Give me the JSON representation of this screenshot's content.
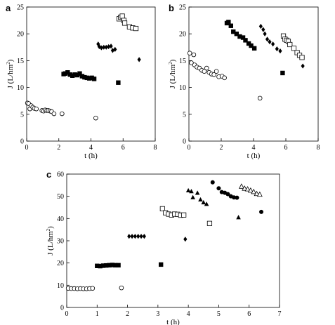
{
  "chart_data": [
    {
      "panel": "a",
      "type": "scatter",
      "xlabel": "t (h)",
      "ylabel": "J (L/hm²)",
      "xlim": [
        0,
        8
      ],
      "ylim": [
        0,
        25
      ],
      "xticks": [
        0,
        2,
        4,
        6,
        8
      ],
      "yticks": [
        0,
        5,
        10,
        15,
        20,
        25
      ],
      "series": [
        {
          "marker": "open-circle",
          "points": [
            [
              0.05,
              7.1
            ],
            [
              0.12,
              7.0
            ],
            [
              0.2,
              6.0
            ],
            [
              0.28,
              6.6
            ],
            [
              0.38,
              6.3
            ],
            [
              0.48,
              6.1
            ],
            [
              0.6,
              6.0
            ],
            [
              0.95,
              5.7
            ],
            [
              1.05,
              5.6
            ],
            [
              1.15,
              5.8
            ],
            [
              1.25,
              5.7
            ],
            [
              1.35,
              5.7
            ],
            [
              1.45,
              5.6
            ],
            [
              1.55,
              5.5
            ],
            [
              1.7,
              5.1
            ],
            [
              2.2,
              5.1
            ],
            [
              4.3,
              4.3
            ]
          ]
        },
        {
          "marker": "filled-square",
          "points": [
            [
              2.3,
              12.5
            ],
            [
              2.4,
              12.6
            ],
            [
              2.55,
              12.8
            ],
            [
              2.7,
              12.4
            ],
            [
              2.85,
              12.2
            ],
            [
              3.0,
              12.4
            ],
            [
              3.15,
              12.3
            ],
            [
              3.3,
              12.6
            ],
            [
              3.45,
              12.1
            ],
            [
              3.6,
              11.9
            ],
            [
              3.75,
              11.8
            ],
            [
              3.9,
              11.7
            ],
            [
              4.05,
              11.8
            ],
            [
              4.2,
              11.6
            ],
            [
              5.7,
              10.9
            ]
          ]
        },
        {
          "marker": "filled-diamond",
          "points": [
            [
              4.45,
              18.1
            ],
            [
              4.52,
              17.6
            ],
            [
              4.65,
              17.4
            ],
            [
              4.8,
              17.5
            ],
            [
              4.95,
              17.5
            ],
            [
              5.1,
              17.6
            ],
            [
              5.25,
              17.7
            ],
            [
              5.35,
              16.9
            ],
            [
              5.5,
              17.1
            ],
            [
              7.0,
              15.2
            ]
          ]
        },
        {
          "marker": "open-square",
          "points": [
            [
              5.75,
              22.8
            ],
            [
              5.85,
              23.1
            ],
            [
              5.95,
              23.3
            ],
            [
              6.05,
              22.5
            ],
            [
              6.1,
              22.0
            ],
            [
              6.4,
              21.3
            ],
            [
              6.6,
              21.1
            ],
            [
              6.8,
              21.0
            ]
          ]
        }
      ]
    },
    {
      "panel": "b",
      "type": "scatter",
      "xlabel": "t (h)",
      "ylabel": "J (L/hm²)",
      "xlim": [
        0,
        8
      ],
      "ylim": [
        0,
        25
      ],
      "xticks": [
        0,
        2,
        4,
        6,
        8
      ],
      "yticks": [
        0,
        5,
        10,
        15,
        20,
        25
      ],
      "series": [
        {
          "marker": "open-circle",
          "points": [
            [
              0.05,
              16.4
            ],
            [
              0.15,
              14.6
            ],
            [
              0.3,
              16.1
            ],
            [
              0.35,
              14.2
            ],
            [
              0.5,
              13.8
            ],
            [
              0.65,
              13.6
            ],
            [
              0.8,
              13.2
            ],
            [
              0.95,
              13.0
            ],
            [
              1.1,
              13.6
            ],
            [
              1.25,
              12.8
            ],
            [
              1.4,
              12.5
            ],
            [
              1.55,
              12.4
            ],
            [
              1.7,
              13.0
            ],
            [
              1.85,
              12.0
            ],
            [
              2.05,
              12.1
            ],
            [
              2.2,
              11.8
            ],
            [
              4.4,
              8.0
            ]
          ]
        },
        {
          "marker": "filled-square",
          "points": [
            [
              2.35,
              22.0
            ],
            [
              2.45,
              22.2
            ],
            [
              2.6,
              21.5
            ],
            [
              2.75,
              20.4
            ],
            [
              2.95,
              20.0
            ],
            [
              3.15,
              19.5
            ],
            [
              3.35,
              19.3
            ],
            [
              3.5,
              18.8
            ],
            [
              3.7,
              18.2
            ],
            [
              3.85,
              17.8
            ],
            [
              4.05,
              17.3
            ],
            [
              5.8,
              12.7
            ]
          ]
        },
        {
          "marker": "filled-diamond",
          "points": [
            [
              4.45,
              21.4
            ],
            [
              4.6,
              20.8
            ],
            [
              4.7,
              20.0
            ],
            [
              4.85,
              19.0
            ],
            [
              5.0,
              18.5
            ],
            [
              5.2,
              18.1
            ],
            [
              5.45,
              17.2
            ],
            [
              5.65,
              16.8
            ],
            [
              7.05,
              14.0
            ]
          ]
        },
        {
          "marker": "open-square",
          "points": [
            [
              5.85,
              19.6
            ],
            [
              5.95,
              19.0
            ],
            [
              6.05,
              18.8
            ],
            [
              6.15,
              18.6
            ],
            [
              6.25,
              18.0
            ],
            [
              6.5,
              17.3
            ],
            [
              6.7,
              16.5
            ],
            [
              6.85,
              16.0
            ],
            [
              7.0,
              15.6
            ]
          ]
        }
      ]
    },
    {
      "panel": "c",
      "type": "scatter",
      "xlabel": "t (h)",
      "ylabel": "J (L/hm²)",
      "xlim": [
        0,
        7
      ],
      "ylim": [
        0,
        60
      ],
      "xticks": [
        0,
        1,
        2,
        3,
        4,
        5,
        6,
        7
      ],
      "yticks": [
        0,
        10,
        20,
        30,
        40,
        50,
        60
      ],
      "series": [
        {
          "marker": "open-circle",
          "points": [
            [
              0.05,
              8.6
            ],
            [
              0.15,
              8.5
            ],
            [
              0.25,
              8.5
            ],
            [
              0.35,
              8.4
            ],
            [
              0.45,
              8.5
            ],
            [
              0.55,
              8.4
            ],
            [
              0.65,
              8.4
            ],
            [
              0.75,
              8.5
            ],
            [
              0.85,
              8.6
            ],
            [
              1.8,
              8.8
            ]
          ]
        },
        {
          "marker": "filled-square",
          "points": [
            [
              1.0,
              18.7
            ],
            [
              1.1,
              18.6
            ],
            [
              1.2,
              18.8
            ],
            [
              1.3,
              18.9
            ],
            [
              1.4,
              19.0
            ],
            [
              1.5,
              19.1
            ],
            [
              1.6,
              19.0
            ],
            [
              1.7,
              19.0
            ],
            [
              3.1,
              19.3
            ]
          ]
        },
        {
          "marker": "filled-diamond",
          "points": [
            [
              2.05,
              32.0
            ],
            [
              2.15,
              32.0
            ],
            [
              2.25,
              32.0
            ],
            [
              2.35,
              32.0
            ],
            [
              2.45,
              32.0
            ],
            [
              2.55,
              32.0
            ],
            [
              3.9,
              30.7
            ]
          ]
        },
        {
          "marker": "open-square",
          "points": [
            [
              3.15,
              44.4
            ],
            [
              3.25,
              42.6
            ],
            [
              3.35,
              42.0
            ],
            [
              3.45,
              41.6
            ],
            [
              3.55,
              42.0
            ],
            [
              3.65,
              41.9
            ],
            [
              3.75,
              41.5
            ],
            [
              3.85,
              41.6
            ],
            [
              4.7,
              37.8
            ]
          ]
        },
        {
          "marker": "filled-triangle",
          "points": [
            [
              4.0,
              52.6
            ],
            [
              4.1,
              52.2
            ],
            [
              4.15,
              49.5
            ],
            [
              4.3,
              51.5
            ],
            [
              4.4,
              48.5
            ],
            [
              4.5,
              47.2
            ],
            [
              4.6,
              46.5
            ],
            [
              5.65,
              40.5
            ]
          ]
        },
        {
          "marker": "filled-circle",
          "points": [
            [
              4.8,
              56.3
            ],
            [
              5.0,
              53.6
            ],
            [
              5.1,
              51.9
            ],
            [
              5.2,
              51.6
            ],
            [
              5.3,
              51.0
            ],
            [
              5.4,
              50.0
            ],
            [
              5.5,
              49.5
            ],
            [
              5.6,
              49.4
            ],
            [
              6.4,
              43.0
            ]
          ]
        },
        {
          "marker": "open-triangle",
          "points": [
            [
              5.75,
              54.4
            ],
            [
              5.85,
              53.5
            ],
            [
              5.95,
              53.2
            ],
            [
              6.05,
              52.6
            ],
            [
              6.15,
              52.0
            ],
            [
              6.25,
              51.1
            ],
            [
              6.35,
              50.8
            ]
          ]
        }
      ]
    }
  ]
}
